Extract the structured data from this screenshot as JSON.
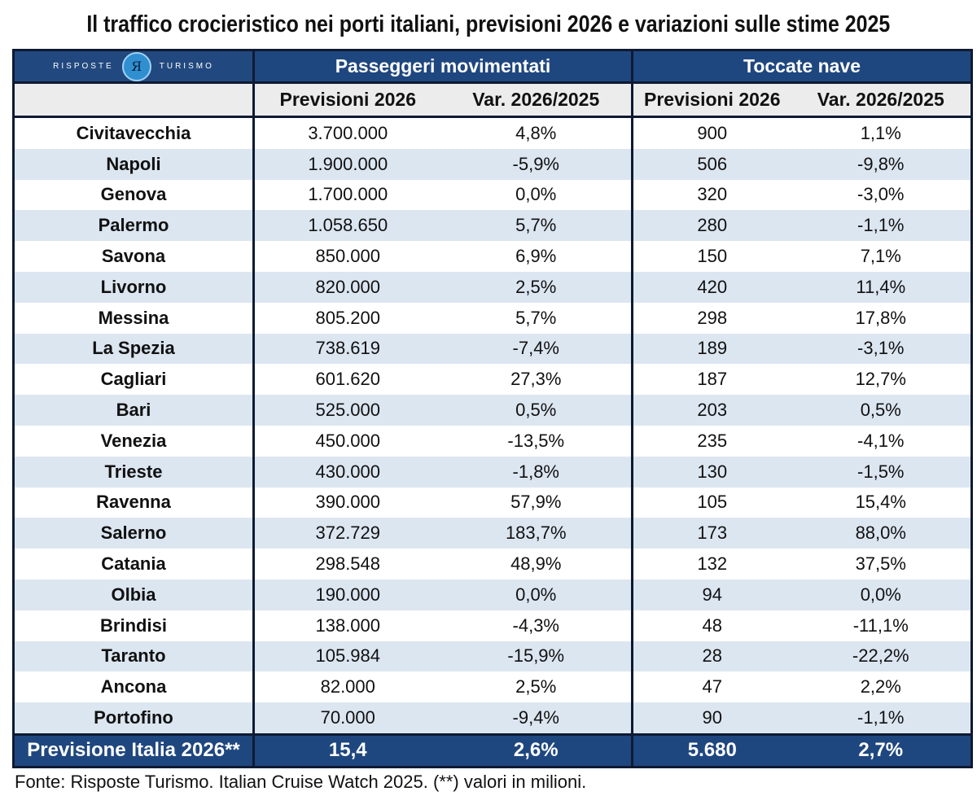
{
  "title": "Il traffico crocieristico nei porti italiani, previsioni 2026 e variazioni sulle stime 2025",
  "logo": {
    "left": "RISPOSTE",
    "right": "TURISMO",
    "mark": "Я"
  },
  "groups": [
    "Passeggeri movimentati",
    "Toccate nave"
  ],
  "subheaders": [
    "Previsioni 2026",
    "Var. 2026/2025",
    "Previsioni 2026",
    "Var. 2026/2025"
  ],
  "colors": {
    "header": "#1f477f",
    "alt_row": "#dce6f1",
    "subheader": "#ececec"
  },
  "chart_data": {
    "type": "table",
    "title": "Il traffico crocieristico nei porti italiani, previsioni 2026 e variazioni sulle stime 2025",
    "columns": [
      "",
      "Passeggeri movimentati - Previsioni 2026",
      "Passeggeri movimentati - Var. 2026/2025",
      "Toccate nave - Previsioni 2026",
      "Toccate nave - Var. 2026/2025"
    ],
    "rows": [
      [
        "Civitavecchia",
        "3.700.000",
        "4,8%",
        "900",
        "1,1%"
      ],
      [
        "Napoli",
        "1.900.000",
        "-5,9%",
        "506",
        "-9,8%"
      ],
      [
        "Genova",
        "1.700.000",
        "0,0%",
        "320",
        "-3,0%"
      ],
      [
        "Palermo",
        "1.058.650",
        "5,7%",
        "280",
        "-1,1%"
      ],
      [
        "Savona",
        "850.000",
        "6,9%",
        "150",
        "7,1%"
      ],
      [
        "Livorno",
        "820.000",
        "2,5%",
        "420",
        "11,4%"
      ],
      [
        "Messina",
        "805.200",
        "5,7%",
        "298",
        "17,8%"
      ],
      [
        "La Spezia",
        "738.619",
        "-7,4%",
        "189",
        "-3,1%"
      ],
      [
        "Cagliari",
        "601.620",
        "27,3%",
        "187",
        "12,7%"
      ],
      [
        "Bari",
        "525.000",
        "0,5%",
        "203",
        "0,5%"
      ],
      [
        "Venezia",
        "450.000",
        "-13,5%",
        "235",
        "-4,1%"
      ],
      [
        "Trieste",
        "430.000",
        "-1,8%",
        "130",
        "-1,5%"
      ],
      [
        "Ravenna",
        "390.000",
        "57,9%",
        "105",
        "15,4%"
      ],
      [
        "Salerno",
        "372.729",
        "183,7%",
        "173",
        "88,0%"
      ],
      [
        "Catania",
        "298.548",
        "48,9%",
        "132",
        "37,5%"
      ],
      [
        "Olbia",
        "190.000",
        "0,0%",
        "94",
        "0,0%"
      ],
      [
        "Brindisi",
        "138.000",
        "-4,3%",
        "48",
        "-11,1%"
      ],
      [
        "Taranto",
        "105.984",
        "-15,9%",
        "28",
        "-22,2%"
      ],
      [
        "Ancona",
        "82.000",
        "2,5%",
        "47",
        "2,2%"
      ],
      [
        "Portofino",
        "70.000",
        "-9,4%",
        "90",
        "-1,1%"
      ]
    ],
    "total": [
      "Previsione Italia 2026**",
      "15,4",
      "2,6%",
      "5.680",
      "2,7%"
    ]
  },
  "footer": "Fonte: Risposte Turismo. Italian Cruise Watch 2025. (**) valori in milioni."
}
